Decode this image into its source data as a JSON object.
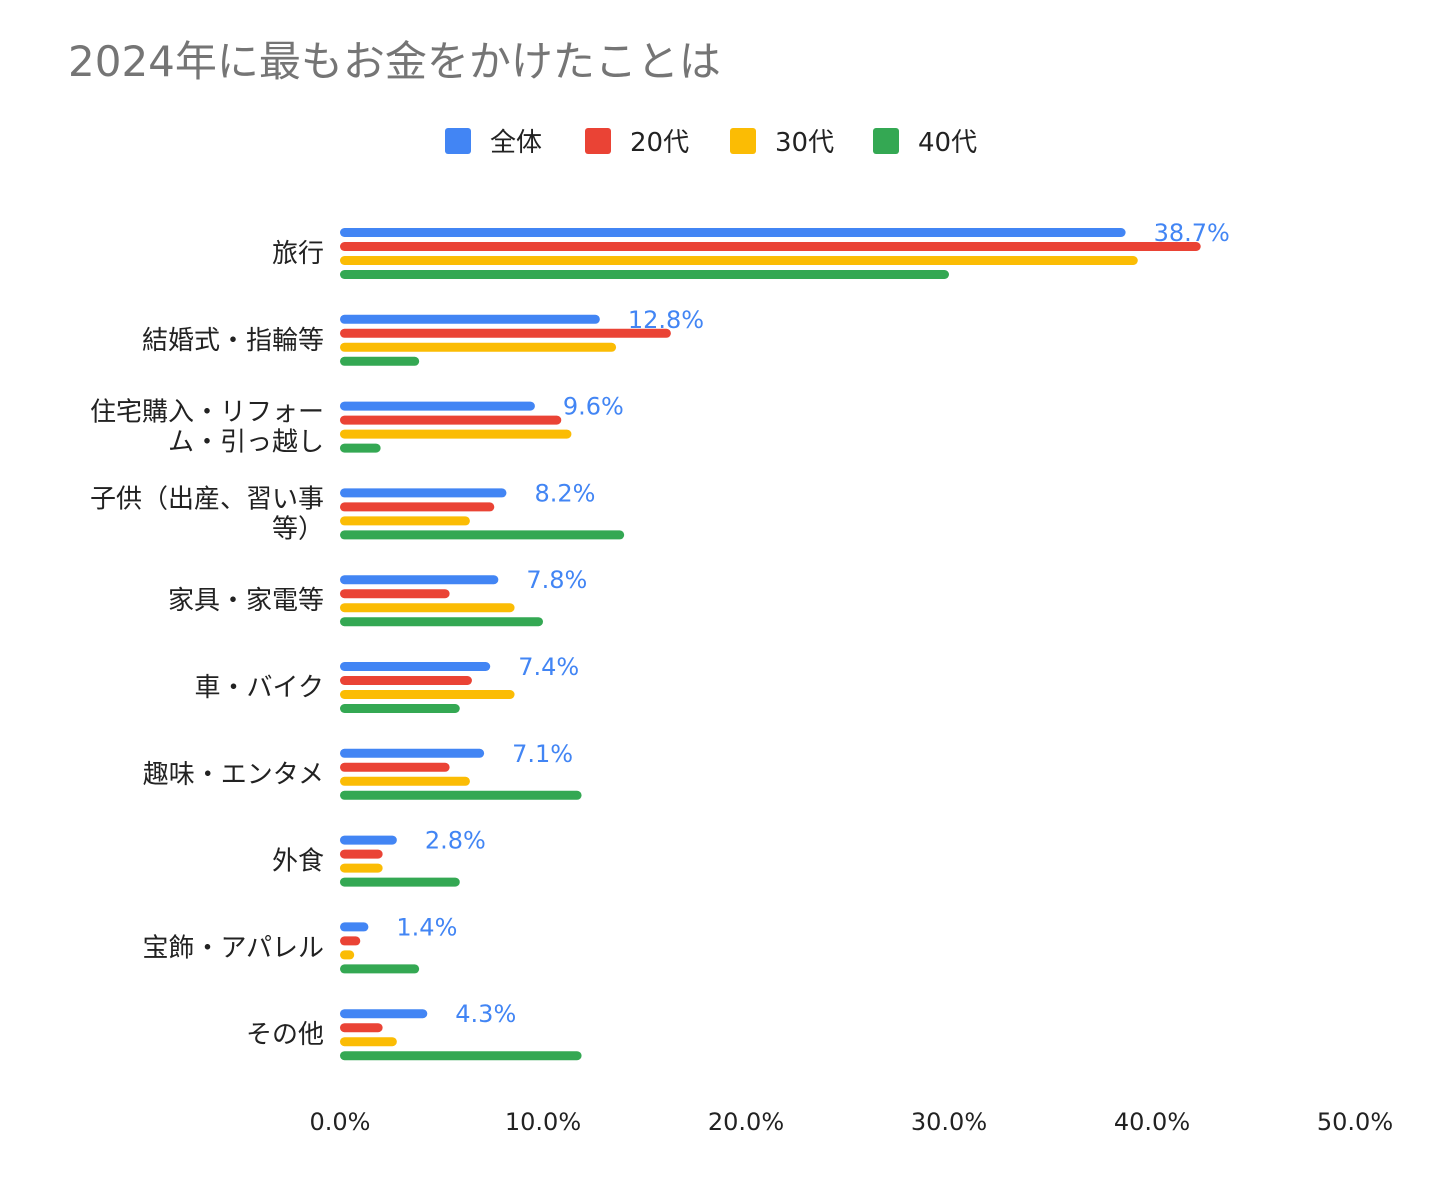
{
  "chart_data": {
    "type": "bar",
    "orientation": "horizontal",
    "title": "2024年に最もお金をかけたことは",
    "legend_position": "top",
    "categories": [
      [
        "旅行"
      ],
      [
        "結婚式・指輪等"
      ],
      [
        "住宅購入・リフォー",
        "ム・引っ越し"
      ],
      [
        "子供（出産、習い事",
        "等）"
      ],
      [
        "家具・家電等"
      ],
      [
        "車・バイク"
      ],
      [
        "趣味・エンタメ"
      ],
      [
        "外食"
      ],
      [
        "宝飾・アパレル"
      ],
      [
        "その他"
      ]
    ],
    "series": [
      {
        "name": "全体",
        "color": "#4285F4",
        "values": [
          38.7,
          12.8,
          9.6,
          8.2,
          7.8,
          7.4,
          7.1,
          2.8,
          1.4,
          4.3
        ],
        "data_labels": [
          "38.7%",
          "12.8%",
          "9.6%",
          "8.2%",
          "7.8%",
          "7.4%",
          "7.1%",
          "2.8%",
          "1.4%",
          "4.3%"
        ]
      },
      {
        "name": "20代",
        "color": "#EA4335",
        "values": [
          42.4,
          16.3,
          10.9,
          7.6,
          5.4,
          6.5,
          5.4,
          2.1,
          1.0,
          2.1
        ]
      },
      {
        "name": "30代",
        "color": "#FBBC04",
        "values": [
          39.3,
          13.6,
          11.4,
          6.4,
          8.6,
          8.6,
          6.4,
          2.1,
          0.7,
          2.8
        ]
      },
      {
        "name": "40代",
        "color": "#34A853",
        "values": [
          30.0,
          3.9,
          2.0,
          14.0,
          10.0,
          5.9,
          11.9,
          5.9,
          3.9,
          11.9
        ]
      }
    ],
    "xlim": [
      0,
      50
    ],
    "x_ticks": [
      "0.0%",
      "10.0%",
      "20.0%",
      "30.0%",
      "40.0%",
      "50.0%"
    ],
    "x_tick_values": [
      0,
      10,
      20,
      30,
      40,
      50
    ],
    "grid": false
  }
}
